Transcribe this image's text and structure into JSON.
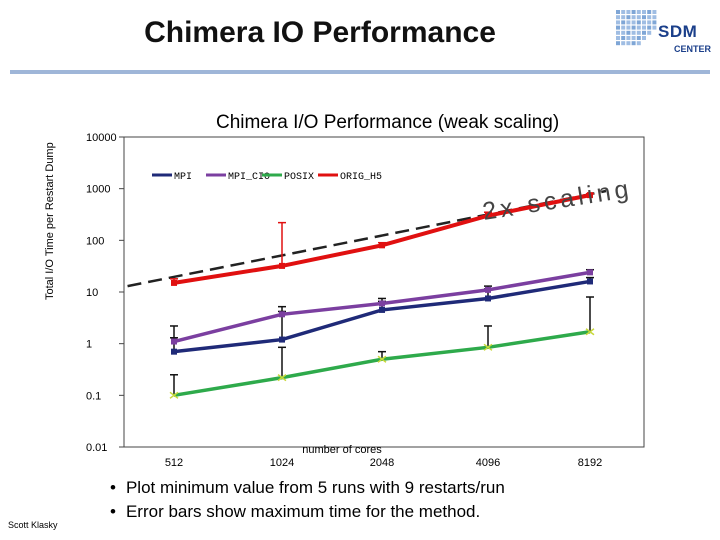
{
  "slide": {
    "title": "Chimera IO Performance",
    "logo_text": "SDM",
    "logo_subtext": "CENTER",
    "author": "Scott Klasky",
    "bullets": [
      "Plot minimum value from 5 runs with 9 restarts/run",
      "Error bars show maximum time for the method."
    ],
    "colors": {
      "title_rule": "#9fb6d8",
      "logo": "#1b3f8a"
    }
  },
  "chart_data": {
    "type": "line",
    "title": "Chimera I/O Performance (weak scaling)",
    "xlabel": "number of cores",
    "ylabel": "Total I/O Time per Restart Dump",
    "yscale": "log",
    "ylim": [
      0.01,
      10000
    ],
    "y_ticks": [
      "0.01",
      "0.1",
      "1",
      "10",
      "100",
      "1000",
      "10000"
    ],
    "categories": [
      "512",
      "1024",
      "2048",
      "4096",
      "8192"
    ],
    "legend": [
      "MPI",
      "MPI_CIO",
      "POSIX",
      "ORIG_H5"
    ],
    "legend_position": "top",
    "annotation": "2x scaling",
    "series": [
      {
        "name": "MPI",
        "color": "#1f2a78",
        "values": [
          0.7,
          1.2,
          4.5,
          7.5,
          16
        ],
        "max": [
          2.2,
          5.2,
          6.6,
          11.5,
          19
        ]
      },
      {
        "name": "MPI_CIO",
        "color": "#7b3fa0",
        "values": [
          1.1,
          3.7,
          6.0,
          11,
          24
        ],
        "max": [
          1.3,
          4.2,
          7.5,
          13,
          27
        ]
      },
      {
        "name": "POSIX",
        "color": "#2eaa4b",
        "values": [
          0.1,
          0.22,
          0.5,
          0.85,
          1.7
        ],
        "max": [
          0.25,
          0.85,
          0.7,
          2.2,
          8
        ]
      },
      {
        "name": "ORIG_H5",
        "color": "#e01010",
        "values": [
          15,
          32,
          80,
          300,
          750
        ],
        "max": [
          18,
          220,
          90,
          350,
          800
        ]
      }
    ],
    "trend_line": {
      "style": "dashed",
      "color": "#222222",
      "from": [
        380,
        13
      ],
      "to": [
        8192,
        900
      ]
    }
  }
}
